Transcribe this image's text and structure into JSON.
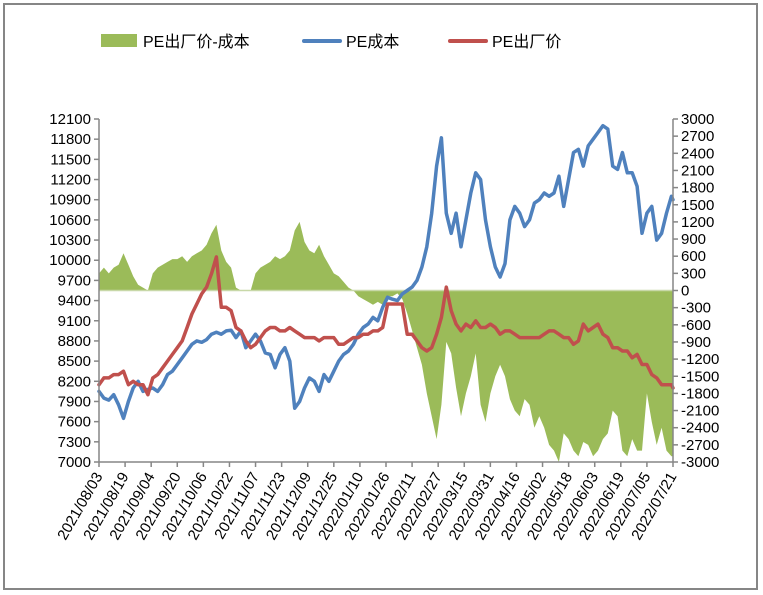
{
  "chart_data": {
    "type": "line",
    "title": "",
    "legend": {
      "position": "top",
      "entries": [
        {
          "name": "PE出厂价-成本",
          "kind": "area",
          "color": "#9BBB59"
        },
        {
          "name": "PE成本",
          "kind": "line",
          "color": "#4F81BD"
        },
        {
          "name": "PE出厂价",
          "kind": "line",
          "color": "#C0504D"
        }
      ]
    },
    "left_axis": {
      "ylim": [
        7000,
        12100
      ],
      "ticks": [
        "12100",
        "11800",
        "11500",
        "11200",
        "10900",
        "10600",
        "10300",
        "10000",
        "9700",
        "9400",
        "9100",
        "8800",
        "8500",
        "8200",
        "7900",
        "7600",
        "7300",
        "7000"
      ]
    },
    "right_axis": {
      "ylim": [
        -3000,
        3000
      ],
      "ticks": [
        "3000",
        "2700",
        "2400",
        "2100",
        "1800",
        "1500",
        "1200",
        "900",
        "600",
        "300",
        "0",
        "-300",
        "-600",
        "-900",
        "-1200",
        "-1500",
        "-1800",
        "-2100",
        "-2400",
        "-2700",
        "-3000"
      ]
    },
    "x_axis": {
      "start": "2021/08/03",
      "end": "2022/07/21",
      "tick_labels": [
        "2021/08/03",
        "2021/08/19",
        "2021/09/04",
        "2021/09/20",
        "2021/10/06",
        "2021/10/22",
        "2021/11/07",
        "2021/11/23",
        "2021/12/09",
        "2021/12/25",
        "2022/01/10",
        "2022/01/26",
        "2022/02/11",
        "2022/02/27",
        "2022/03/15",
        "2022/03/31",
        "2022/04/16",
        "2022/05/02",
        "2022/05/18",
        "2022/06/03",
        "2022/06/19",
        "2022/07/05",
        "2022/07/21"
      ]
    },
    "series": [
      {
        "name": "PE成本",
        "axis": "left",
        "color": "#4F81BD",
        "day_offsets": [
          0,
          3,
          6,
          9,
          12,
          15,
          18,
          21,
          24,
          27,
          30,
          33,
          36,
          39,
          42,
          45,
          48,
          51,
          54,
          57,
          60,
          63,
          66,
          69,
          72,
          75,
          78,
          81,
          84,
          87,
          90,
          93,
          96,
          99,
          102,
          105,
          108,
          111,
          114,
          117,
          120,
          123,
          126,
          129,
          132,
          135,
          138,
          141,
          144,
          147,
          150,
          153,
          156,
          159,
          162,
          165,
          168,
          171,
          174,
          177,
          180,
          183,
          186,
          189,
          192,
          195,
          198,
          201,
          204,
          207,
          210,
          213,
          216,
          219,
          222,
          225,
          228,
          231,
          234,
          237,
          240,
          243,
          246,
          249,
          252,
          255,
          258,
          261,
          264,
          267,
          270,
          273,
          276,
          279,
          282,
          285,
          288,
          291,
          294,
          297,
          300,
          303,
          306,
          309,
          312,
          315,
          318,
          321,
          324,
          327,
          330,
          333,
          336,
          339,
          342,
          345,
          348,
          351,
          352
        ],
        "values": [
          8050,
          7950,
          7920,
          8000,
          7850,
          7650,
          7900,
          8100,
          8200,
          8050,
          8080,
          8100,
          8050,
          8150,
          8300,
          8350,
          8450,
          8550,
          8650,
          8750,
          8800,
          8780,
          8820,
          8900,
          8930,
          8900,
          8950,
          8960,
          8850,
          8950,
          8700,
          8800,
          8900,
          8800,
          8620,
          8600,
          8400,
          8600,
          8700,
          8500,
          7800,
          7900,
          8100,
          8250,
          8200,
          8050,
          8300,
          8200,
          8350,
          8500,
          8600,
          8650,
          8750,
          8900,
          9000,
          9050,
          9150,
          9100,
          9300,
          9450,
          9420,
          9400,
          9500,
          9550,
          9600,
          9700,
          9900,
          10200,
          10700,
          11400,
          11820,
          10700,
          10400,
          10700,
          10200,
          10600,
          11000,
          11300,
          11200,
          10600,
          10200,
          9900,
          9750,
          9950,
          10600,
          10800,
          10700,
          10500,
          10600,
          10850,
          10900,
          11000,
          10950,
          11000,
          11250,
          10800,
          11200,
          11600,
          11650,
          11400,
          11700,
          11800,
          11900,
          12000,
          11950,
          11400,
          11350,
          11600,
          11300,
          11300,
          11100,
          10400,
          10700,
          10800,
          10300,
          10400,
          10700,
          10950,
          10900
        ]
      },
      {
        "name": "PE出厂价",
        "axis": "left",
        "color": "#C0504D",
        "day_offsets": [
          0,
          3,
          6,
          9,
          12,
          15,
          18,
          21,
          24,
          27,
          30,
          33,
          36,
          39,
          42,
          45,
          48,
          51,
          54,
          57,
          60,
          63,
          66,
          69,
          72,
          75,
          78,
          81,
          84,
          87,
          90,
          93,
          96,
          99,
          102,
          105,
          108,
          111,
          114,
          117,
          120,
          123,
          126,
          129,
          132,
          135,
          138,
          141,
          144,
          147,
          150,
          153,
          156,
          159,
          162,
          165,
          168,
          171,
          174,
          177,
          180,
          183,
          186,
          189,
          192,
          195,
          198,
          201,
          204,
          207,
          210,
          213,
          216,
          219,
          222,
          225,
          228,
          231,
          234,
          237,
          240,
          243,
          246,
          249,
          252,
          255,
          258,
          261,
          264,
          267,
          270,
          273,
          276,
          279,
          282,
          285,
          288,
          291,
          294,
          297,
          300,
          303,
          306,
          309,
          312,
          315,
          318,
          321,
          324,
          327,
          330,
          333,
          336,
          339,
          342,
          345,
          348,
          351,
          352
        ],
        "values": [
          8150,
          8250,
          8250,
          8300,
          8300,
          8350,
          8150,
          8200,
          8150,
          8150,
          8000,
          8250,
          8300,
          8400,
          8500,
          8600,
          8700,
          8800,
          9000,
          9200,
          9350,
          9500,
          9600,
          9800,
          10050,
          9300,
          9300,
          9250,
          9000,
          8950,
          8800,
          8700,
          8750,
          8850,
          8950,
          9000,
          9000,
          8950,
          8950,
          9000,
          8950,
          8900,
          8850,
          8850,
          8850,
          8800,
          8850,
          8850,
          8850,
          8750,
          8750,
          8800,
          8850,
          8850,
          8900,
          8900,
          8950,
          8950,
          9000,
          9350,
          9350,
          9350,
          9350,
          8900,
          8900,
          8800,
          8700,
          8650,
          8700,
          8900,
          9150,
          9600,
          9250,
          9050,
          8950,
          9050,
          9000,
          9100,
          9000,
          9000,
          9050,
          9000,
          8900,
          8950,
          8950,
          8900,
          8850,
          8850,
          8850,
          8850,
          8850,
          8900,
          8950,
          8950,
          8900,
          8850,
          8850,
          8750,
          8800,
          9050,
          8950,
          9000,
          9050,
          8900,
          8850,
          8700,
          8700,
          8650,
          8650,
          8550,
          8600,
          8450,
          8450,
          8300,
          8250,
          8150,
          8150,
          8150,
          8100
        ]
      },
      {
        "name": "PE出厂价-成本",
        "axis": "right",
        "kind": "area",
        "color": "#9BBB59",
        "day_offsets": [
          0,
          3,
          6,
          9,
          12,
          15,
          18,
          21,
          24,
          27,
          30,
          33,
          36,
          39,
          42,
          45,
          48,
          51,
          54,
          57,
          60,
          63,
          66,
          69,
          72,
          75,
          78,
          81,
          84,
          87,
          90,
          93,
          96,
          99,
          102,
          105,
          108,
          111,
          114,
          117,
          120,
          123,
          126,
          129,
          132,
          135,
          138,
          141,
          144,
          147,
          150,
          153,
          156,
          159,
          162,
          165,
          168,
          171,
          174,
          177,
          180,
          183,
          186,
          189,
          192,
          195,
          198,
          201,
          204,
          207,
          210,
          213,
          216,
          219,
          222,
          225,
          228,
          231,
          234,
          237,
          240,
          243,
          246,
          249,
          252,
          255,
          258,
          261,
          264,
          267,
          270,
          273,
          276,
          279,
          282,
          285,
          288,
          291,
          294,
          297,
          300,
          303,
          306,
          309,
          312,
          315,
          318,
          321,
          324,
          327,
          330,
          333,
          336,
          339,
          342,
          345,
          348,
          351,
          352
        ],
        "values": [
          300,
          400,
          300,
          400,
          450,
          650,
          450,
          250,
          100,
          50,
          0,
          300,
          400,
          450,
          500,
          550,
          550,
          600,
          500,
          600,
          650,
          700,
          800,
          1000,
          1150,
          700,
          500,
          400,
          50,
          0,
          0,
          0,
          300,
          400,
          450,
          500,
          600,
          550,
          600,
          700,
          1050,
          1200,
          850,
          700,
          650,
          800,
          600,
          450,
          300,
          250,
          150,
          50,
          0,
          -100,
          -150,
          -200,
          -250,
          -200,
          -250,
          -100,
          -100,
          -50,
          -150,
          -400,
          -700,
          -1000,
          -1300,
          -1800,
          -2200,
          -2600,
          -2000,
          -900,
          -1100,
          -1700,
          -2200,
          -1800,
          -1500,
          -1100,
          -2000,
          -2300,
          -1800,
          -1500,
          -1300,
          -1500,
          -1900,
          -2100,
          -2200,
          -1900,
          -2000,
          -2400,
          -2200,
          -2400,
          -2700,
          -2800,
          -3000,
          -2500,
          -2600,
          -2800,
          -2900,
          -2650,
          -2700,
          -2900,
          -2800,
          -2600,
          -2500,
          -2100,
          -2200,
          -2800,
          -2900,
          -2600,
          -2800,
          -2800,
          -1800,
          -2300,
          -2700,
          -2400,
          -2800,
          -2900,
          -2900
        ]
      }
    ]
  }
}
